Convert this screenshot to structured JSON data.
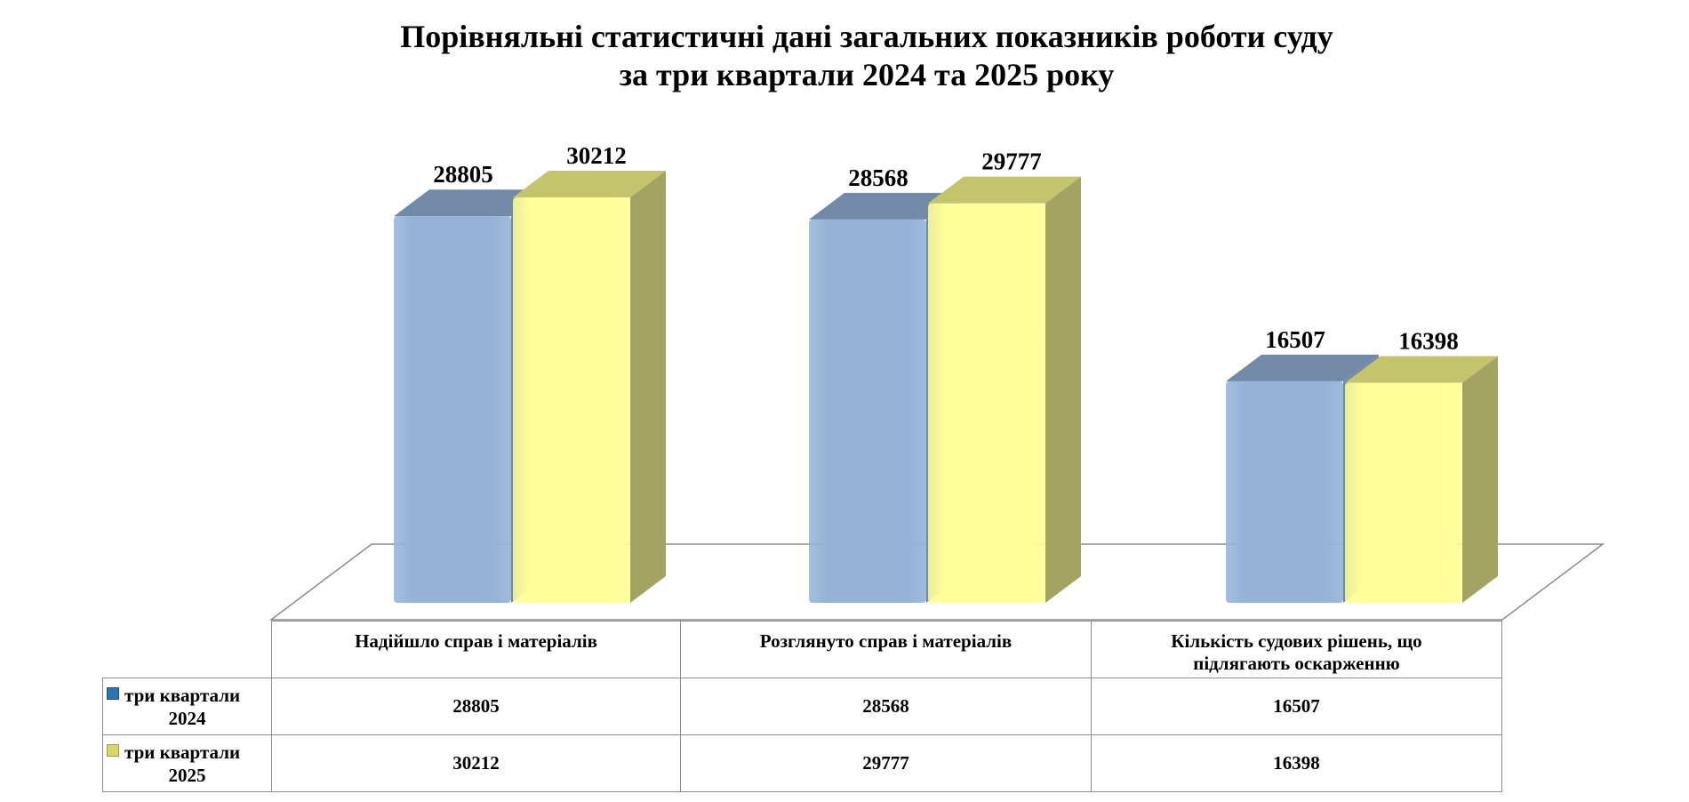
{
  "title": {
    "line1": "Порівняльні статистичні дані загальних показників роботи суду",
    "line2": "за три квартали 2024 та 2025 року"
  },
  "chart_data": {
    "type": "bar",
    "title": "Порівняльні статистичні дані загальних показників роботи суду за три квартали 2024 та 2025 року",
    "categories": [
      "Надійшло  справ і матеріалів",
      "Розглянуто справ і матеріалів",
      "Кількість судових рішень, що підлягають оскарженню"
    ],
    "series": [
      {
        "name": "три  квартали 2024",
        "values": [
          28805,
          28568,
          16507
        ],
        "color": "#95B3D7",
        "top_color": "#7389A8",
        "side_color": "#7389A8"
      },
      {
        "name": "три  квартали 2025",
        "values": [
          30212,
          29777,
          16398
        ],
        "color": "#FFFF99",
        "top_color": "#C4C46E",
        "side_color": "#A3A362"
      }
    ],
    "ylim": [
      0,
      30212
    ],
    "grid": false,
    "legend": "data-table",
    "style": "3d-clustered-column"
  },
  "table": {
    "headers": [
      "Надійшло  справ і матеріалів",
      "Розглянуто справ і матеріалів",
      "Кількість судових рішень, що підлягають оскарженню"
    ],
    "header_lines": [
      [
        "Надійшло  справ і матеріалів"
      ],
      [
        "Розглянуто справ і матеріалів"
      ],
      [
        "Кількість судових рішень, що",
        "підлягають оскарженню"
      ]
    ],
    "rows": [
      {
        "label_line1": "три  квартали",
        "label_line2": "2024",
        "key_color": "#2E74B5",
        "values": [
          "28805",
          "28568",
          "16507"
        ]
      },
      {
        "label_line1": "три  квартали",
        "label_line2": "2025",
        "key_color": "#D6D66A",
        "values": [
          "30212",
          "29777",
          "16398"
        ]
      }
    ]
  }
}
